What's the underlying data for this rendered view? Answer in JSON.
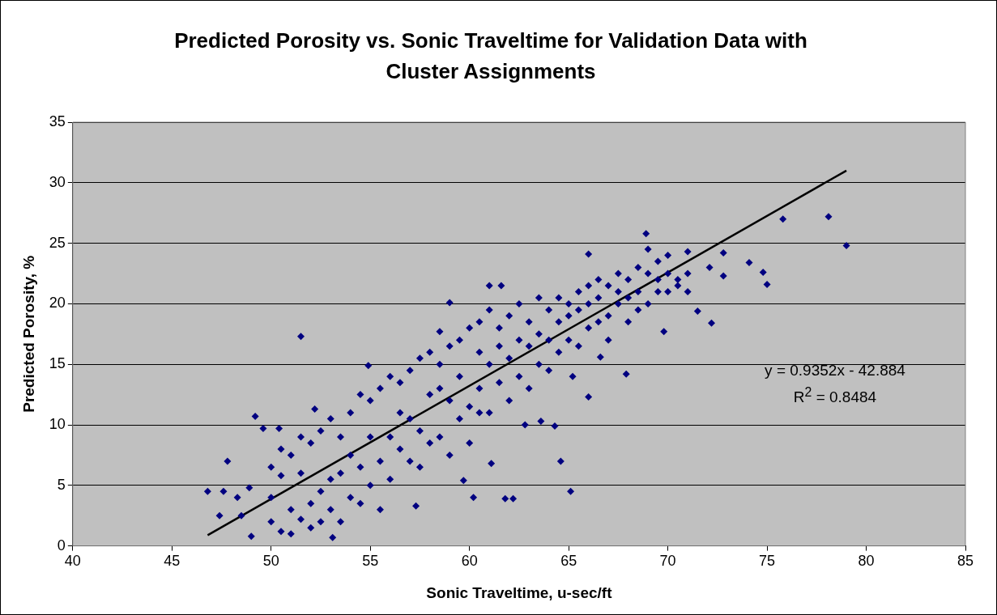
{
  "chart_data": {
    "type": "scatter",
    "title": "Predicted Porosity vs. Sonic Traveltime for Validation Data with Cluster Assignments",
    "xlabel": "Sonic Traveltime, u-sec/ft",
    "ylabel": "Predicted Porosity, %",
    "xlim": [
      40,
      85
    ],
    "xticks": [
      40,
      45,
      50,
      55,
      60,
      65,
      70,
      75,
      80,
      85
    ],
    "ylim": [
      0,
      35
    ],
    "yticks": [
      0,
      5,
      10,
      15,
      20,
      25,
      30,
      35
    ],
    "grid": "y",
    "legend": false,
    "annotations": [
      "y = 0.9352x - 42.884",
      "R$^{2}$ = 0.8484"
    ],
    "series": [
      {
        "type": "scatter",
        "color": "#000080",
        "marker": "diamond",
        "x": [
          46.8,
          47.4,
          47.6,
          47.8,
          48.3,
          48.5,
          48.9,
          49.0,
          49.2,
          49.6,
          50.4,
          51.5,
          52.2,
          53.1,
          54.9,
          57.3,
          59.0,
          59.7,
          60.2,
          60.5,
          61.0,
          61.6,
          61.8,
          62.2,
          62.8,
          63.6,
          64.3,
          64.6,
          65.1,
          65.2,
          66.0,
          66.0,
          66.6,
          67.9,
          68.9,
          69.8,
          71.5,
          72.2,
          72.8,
          72.8,
          74.1,
          74.8,
          75.0,
          75.8,
          78.1,
          79.0,
          71.0,
          72.1,
          61.1,
          58.5,
          50,
          50,
          50,
          50.5,
          50.5,
          50.5,
          51,
          51,
          51,
          51.5,
          51.5,
          51.5,
          52,
          52,
          52,
          52.5,
          52.5,
          52.5,
          53,
          53,
          53,
          53.5,
          53.5,
          53.5,
          54,
          54,
          54,
          54.5,
          54.5,
          54.5,
          55,
          55,
          55,
          55.5,
          55.5,
          55.5,
          56,
          56,
          56,
          56.5,
          56.5,
          56.5,
          57,
          57,
          57,
          57.5,
          57.5,
          57.5,
          58,
          58,
          58,
          58.5,
          58.5,
          58.5,
          59,
          59,
          59,
          59.5,
          59.5,
          59.5,
          60,
          60,
          60,
          60.5,
          60.5,
          60.5,
          61,
          61,
          61,
          61.5,
          61.5,
          61.5,
          62,
          62,
          62,
          62.5,
          62.5,
          62.5,
          63,
          63,
          63,
          63.5,
          63.5,
          63.5,
          64,
          64,
          64,
          64.5,
          64.5,
          64.5,
          65,
          65,
          65,
          65.5,
          65.5,
          65.5,
          66,
          66,
          66,
          66.5,
          66.5,
          66.5,
          67,
          67,
          67,
          67.5,
          67.5,
          67.5,
          68,
          68,
          68,
          68.5,
          68.5,
          68.5,
          69,
          69,
          69,
          69.5,
          69.5,
          69.5,
          70,
          70,
          70,
          70.5,
          70.5,
          71,
          71
        ],
        "values": [
          4.5,
          2.5,
          4.5,
          7.0,
          4.0,
          2.5,
          4.8,
          0.8,
          10.7,
          9.7,
          9.7,
          17.3,
          11.3,
          0.7,
          14.9,
          3.3,
          20.1,
          5.4,
          4.0,
          11.0,
          21.5,
          21.5,
          3.9,
          3.9,
          10.0,
          10.3,
          9.9,
          7.0,
          4.5,
          14.0,
          24.1,
          12.3,
          15.6,
          14.2,
          25.8,
          17.7,
          19.4,
          18.4,
          24.2,
          22.3,
          23.4,
          22.6,
          21.6,
          27.0,
          27.2,
          24.8,
          24.3,
          23.0,
          6.8,
          17.7,
          2.0,
          6.5,
          4.0,
          1.2,
          5.8,
          8.0,
          3.0,
          7.5,
          1.0,
          2.2,
          6.0,
          9.0,
          3.5,
          8.5,
          1.5,
          4.5,
          9.5,
          2.0,
          5.5,
          10.5,
          3.0,
          6.0,
          9.0,
          2.0,
          4.0,
          11.0,
          7.5,
          6.5,
          12.5,
          3.5,
          5.0,
          12.0,
          9.0,
          7.0,
          13.0,
          3.0,
          9.0,
          14.0,
          5.5,
          8.0,
          13.5,
          11.0,
          7.0,
          14.5,
          10.5,
          9.5,
          15.5,
          6.5,
          8.5,
          16.0,
          12.5,
          9.0,
          15.0,
          13.0,
          7.5,
          16.5,
          12.0,
          10.5,
          17.0,
          14.0,
          11.5,
          18.0,
          8.5,
          13.0,
          18.5,
          16.0,
          11.0,
          19.5,
          15.0,
          13.5,
          18.0,
          16.5,
          12.0,
          19.0,
          15.5,
          14.0,
          20.0,
          17.0,
          13.0,
          18.5,
          16.5,
          15.0,
          20.5,
          17.5,
          14.5,
          19.5,
          17.0,
          16.0,
          20.5,
          18.5,
          17.0,
          20.0,
          19.0,
          16.5,
          21.0,
          19.5,
          18.0,
          21.5,
          20.0,
          18.5,
          22.0,
          20.5,
          19.0,
          21.5,
          17.0,
          20.0,
          22.5,
          21.0,
          20.5,
          22.0,
          18.5,
          21.0,
          23.0,
          19.5,
          20.0,
          22.5,
          24.5,
          21.0,
          23.5,
          22.0,
          21.0,
          22.5,
          24.0,
          21.5,
          22.0,
          21.0,
          22.5
        ]
      },
      {
        "type": "line",
        "color": "#000000",
        "marker": "none",
        "line_style": "solid",
        "x": [
          46.8,
          79
        ],
        "values": [
          0.88,
          31.0
        ]
      }
    ]
  }
}
